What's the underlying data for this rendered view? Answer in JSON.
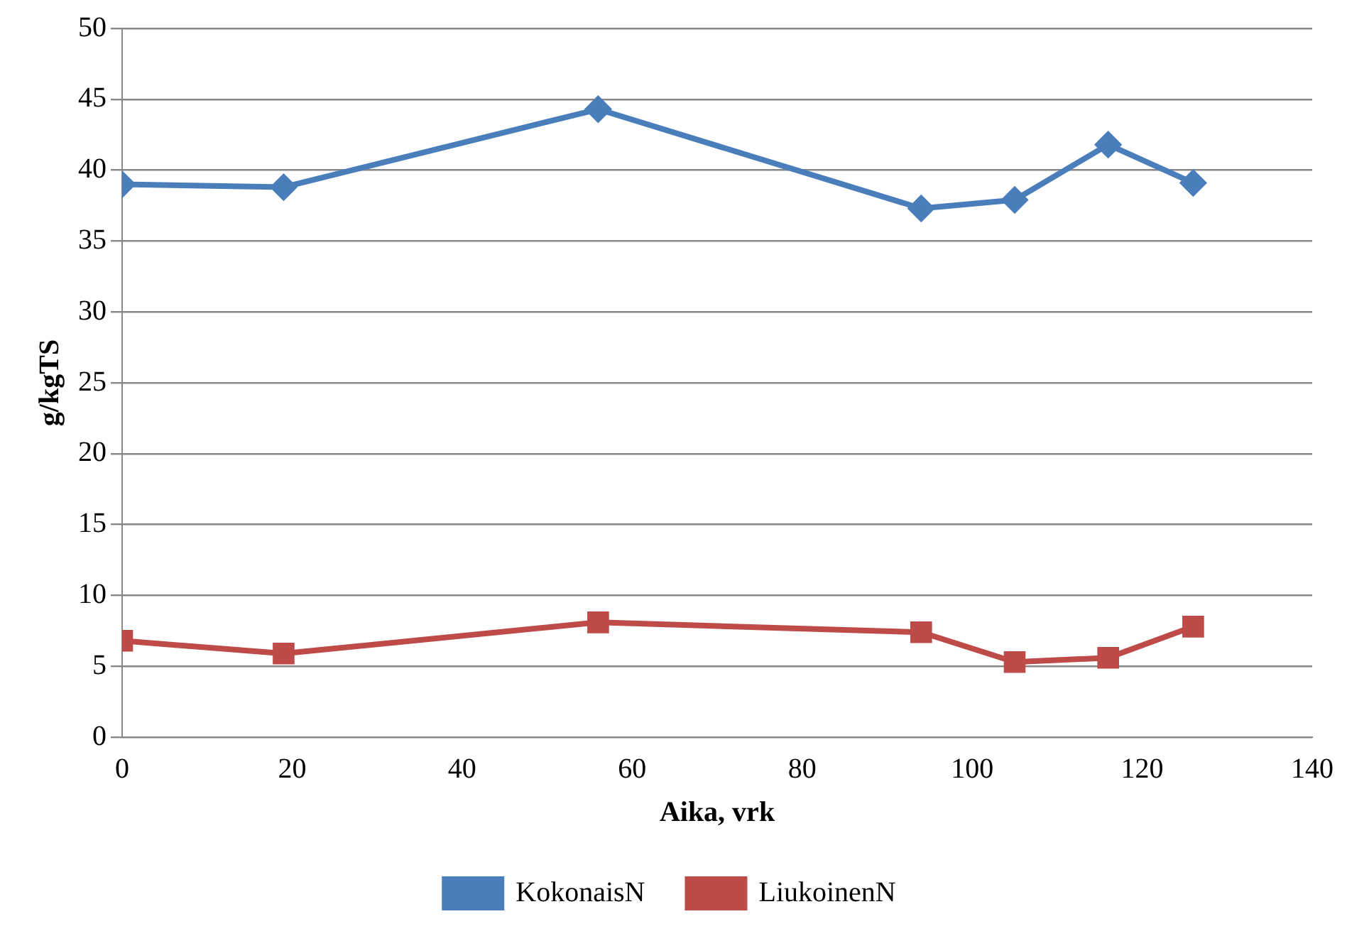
{
  "chart_data": {
    "type": "line",
    "xlabel": "Aika, vrk",
    "ylabel": "g/kgTS",
    "x": [
      0,
      19,
      56,
      94,
      105,
      116,
      126
    ],
    "series": [
      {
        "name": "KokonaisN",
        "color": "#4a7ebb",
        "marker": "diamond",
        "values": [
          39.0,
          38.8,
          44.3,
          37.3,
          37.9,
          41.8,
          39.1
        ]
      },
      {
        "name": "LiukoinenN",
        "color": "#be4b48",
        "marker": "square",
        "values": [
          6.8,
          5.9,
          8.1,
          7.4,
          5.3,
          5.6,
          7.8
        ]
      }
    ],
    "xlim": [
      0,
      140
    ],
    "xticks": [
      0,
      20,
      40,
      60,
      80,
      100,
      120,
      140
    ],
    "ylim": [
      0,
      50
    ],
    "yticks": [
      0,
      5,
      10,
      15,
      20,
      25,
      30,
      35,
      40,
      45,
      50
    ],
    "grid": "y",
    "legend": "bottom",
    "line_style": "solid"
  }
}
